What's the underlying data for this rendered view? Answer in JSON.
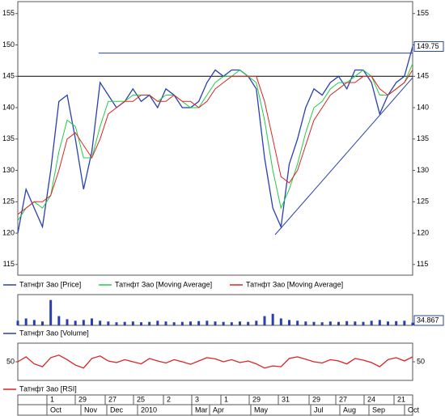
{
  "chart_data": [
    {
      "type": "line",
      "ylim": [
        113.3,
        156.9
      ],
      "yticks": [
        115,
        120,
        125,
        130,
        135,
        140,
        145,
        150,
        155
      ],
      "levels": [
        148.7,
        145
      ],
      "last_value": 149.75,
      "series": [
        {
          "name": "Татнфт Зао [Price]",
          "color": "#2a3fae",
          "values": [
            120,
            127,
            124,
            121,
            130,
            141,
            142,
            135,
            127,
            133,
            144,
            142,
            140,
            141,
            143,
            141,
            142,
            140,
            143,
            142,
            140,
            140,
            141,
            144,
            146,
            145,
            146,
            146,
            145,
            143,
            132,
            124,
            121,
            131,
            135,
            140,
            143,
            142,
            144,
            145,
            143,
            146,
            146,
            144,
            139,
            142,
            144,
            145,
            149.75
          ]
        },
        {
          "name": "Татнфт Зао [Moving Average]",
          "color": "#22cc44",
          "values": [
            122,
            124,
            125,
            124,
            126,
            133,
            138,
            137,
            132,
            132,
            137,
            141,
            141,
            141,
            142,
            142,
            142,
            141,
            142,
            142,
            141,
            140,
            140,
            142,
            144,
            145,
            145,
            146,
            145,
            144,
            138,
            130,
            124,
            127,
            131,
            136,
            140,
            141,
            143,
            144,
            144,
            145,
            146,
            145,
            142,
            142,
            143,
            144,
            147
          ]
        },
        {
          "name": "Татнфт Зао [Moving Average]",
          "color": "#dd2222",
          "values": [
            123,
            124,
            125,
            125,
            126,
            130,
            135,
            136,
            134,
            132,
            135,
            139,
            140,
            141,
            141,
            142,
            142,
            141,
            141,
            142,
            141,
            141,
            140,
            141,
            143,
            144,
            145,
            145,
            145,
            145,
            141,
            135,
            129,
            128,
            130,
            134,
            138,
            140,
            142,
            143,
            144,
            144,
            145,
            145,
            143,
            142,
            143,
            144,
            146
          ]
        }
      ]
    },
    {
      "type": "bar",
      "ylim": [
        0,
        400
      ],
      "last_value": 34.867,
      "series": [
        {
          "name": "Татнфт Зао [Volume]",
          "color": "#2a3fae",
          "values": [
            60,
            90,
            70,
            50,
            330,
            120,
            80,
            60,
            70,
            90,
            60,
            50,
            40,
            45,
            50,
            40,
            45,
            60,
            50,
            40,
            45,
            50,
            55,
            60,
            50,
            45,
            40,
            50,
            45,
            60,
            120,
            150,
            90,
            70,
            60,
            50,
            45,
            40,
            50,
            45,
            55,
            50,
            45,
            60,
            70,
            50,
            55,
            60,
            34.867
          ]
        }
      ]
    },
    {
      "type": "line",
      "ylim": [
        5,
        95
      ],
      "yticks": [
        50
      ],
      "series": [
        {
          "name": "Татнфт Зао [RSI]",
          "color": "#dd2222",
          "values": [
            50,
            62,
            45,
            38,
            60,
            66,
            55,
            42,
            35,
            58,
            64,
            52,
            48,
            55,
            50,
            45,
            58,
            52,
            47,
            55,
            50,
            44,
            52,
            60,
            57,
            50,
            55,
            48,
            52,
            45,
            35,
            40,
            38,
            58,
            62,
            56,
            50,
            47,
            55,
            52,
            45,
            58,
            54,
            48,
            38,
            55,
            60,
            52,
            62
          ]
        }
      ]
    }
  ],
  "date_axis": {
    "days": [
      "1",
      "29",
      "27",
      "25",
      "2",
      "3",
      "1",
      "29",
      "31",
      "29",
      "27",
      "24",
      "21"
    ],
    "months": [
      "Oct",
      "Nov",
      "Dec",
      "2010",
      "Mar",
      "Apr",
      "May",
      "Jul",
      "Aug",
      "Sep",
      "Oct"
    ]
  }
}
